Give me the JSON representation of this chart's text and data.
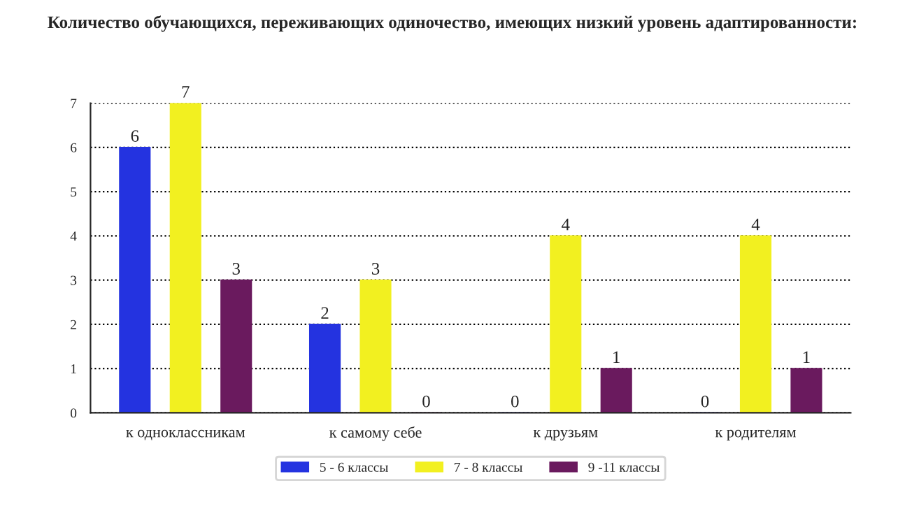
{
  "chart_data": {
    "type": "bar",
    "title": "Количество обучающихся, переживающих одиночество, имеющих низкий уровень адаптированности:",
    "categories": [
      "к одноклассникам",
      "к самому себе",
      "к друзьям",
      "к родителям"
    ],
    "series": [
      {
        "name": "5 - 6 классы",
        "color": "#2433e0",
        "values": [
          6,
          2,
          0,
          0
        ]
      },
      {
        "name": "7 - 8 классы",
        "color": "#f2f020",
        "values": [
          7,
          3,
          4,
          4
        ]
      },
      {
        "name": "9 -11 классы",
        "color": "#6a1a5e",
        "values": [
          3,
          0,
          1,
          1
        ]
      }
    ],
    "ylim": [
      0,
      7
    ],
    "yticks": [
      0,
      1,
      2,
      3,
      4,
      5,
      6,
      7
    ],
    "grid": "y",
    "legend": "bottom",
    "data_labels": true
  }
}
